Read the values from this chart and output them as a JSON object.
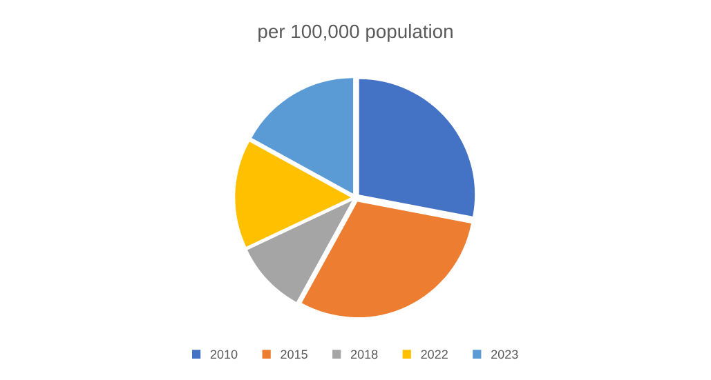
{
  "chart_data": {
    "type": "pie",
    "title": "per 100,000 population",
    "categories": [
      "2010",
      "2015",
      "2018",
      "2022",
      "2023"
    ],
    "values": [
      28,
      30,
      10,
      15,
      17
    ],
    "colors": [
      "#4472c4",
      "#ed7d31",
      "#a5a5a5",
      "#ffc000",
      "#5b9bd5"
    ],
    "legend": "bottom"
  }
}
